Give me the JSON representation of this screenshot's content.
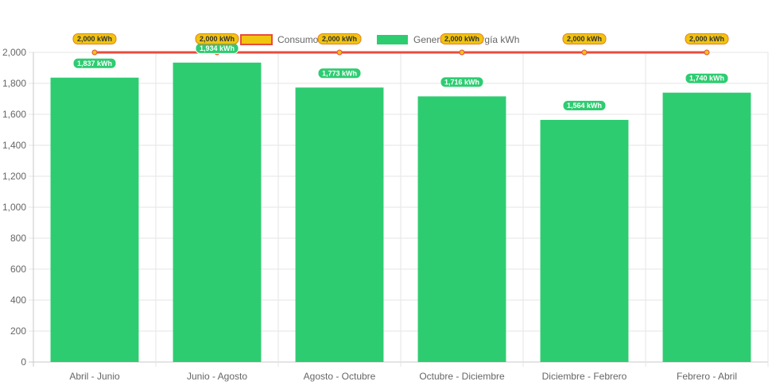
{
  "chart_data": {
    "type": "bar",
    "categories": [
      "Abril - Junio",
      "Junio - Agosto",
      "Agosto - Octubre",
      "Octubre - Diciembre",
      "Diciembre - Febrero",
      "Febrero - Abril"
    ],
    "series": [
      {
        "name": "Consumo kWh",
        "type": "line",
        "values": [
          2000,
          2000,
          2000,
          2000,
          2000,
          2000
        ],
        "labels": [
          "2,000 kWh",
          "2,000 kWh",
          "2,000 kWh",
          "2,000 kWh",
          "2,000 kWh",
          "2,000 kWh"
        ],
        "color": "#e74c3c",
        "fill_color": "#f1c40f"
      },
      {
        "name": "Generación energía kWh",
        "type": "bar",
        "values": [
          1837,
          1934,
          1773,
          1716,
          1564,
          1740
        ],
        "labels": [
          "1,837 kWh",
          "1,934 kWh",
          "1,773 kWh",
          "1,716 kWh",
          "1,564 kWh",
          "1,740 kWh"
        ],
        "color": "#2ecc71"
      }
    ],
    "ylim": [
      0,
      2000
    ],
    "yticks": [
      "0",
      "200",
      "400",
      "600",
      "800",
      "1,000",
      "1,200",
      "1,400",
      "1,600",
      "1,800",
      "2,000"
    ],
    "title": "",
    "xlabel": "",
    "ylabel": "",
    "grid": true,
    "legend": "top-center"
  }
}
